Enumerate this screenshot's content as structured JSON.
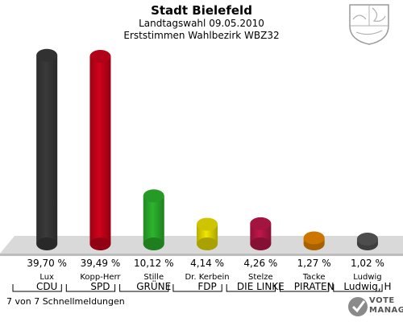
{
  "header": {
    "title": "Stadt Bielefeld",
    "subtitle": "Landtagswahl 09.05.2010",
    "subtitle2": "Erststimmen Wahlbezirk WBZ32"
  },
  "footer": {
    "text": "7 von 7 Schnellmeldungen"
  },
  "brand": {
    "line1": "VOTE",
    "line2": "MANAGER"
  },
  "chart_data": {
    "type": "bar",
    "categories": [
      "Lux",
      "Kopp-Herr",
      "Stille",
      "Dr. Kerbein",
      "Stelze",
      "Tacke",
      "Ludwig"
    ],
    "parties": [
      "CDU",
      "SPD",
      "GRÜNE",
      "FDP",
      "DIE LINKE",
      "PIRATEN",
      "Ludwig, H"
    ],
    "values": [
      39.7,
      39.49,
      10.12,
      4.14,
      4.26,
      1.27,
      1.02
    ],
    "value_labels": [
      "39,70 %",
      "39,49 %",
      "10,12 %",
      "4,14 %",
      "4,26 %",
      "1,27 %",
      "1,02 %"
    ],
    "colors": [
      "#3a3a3a",
      "#d0021b",
      "#2db52d",
      "#f2e600",
      "#c0174a",
      "#f08a00",
      "#5a5a5a"
    ],
    "ylim": [
      0,
      40
    ]
  }
}
